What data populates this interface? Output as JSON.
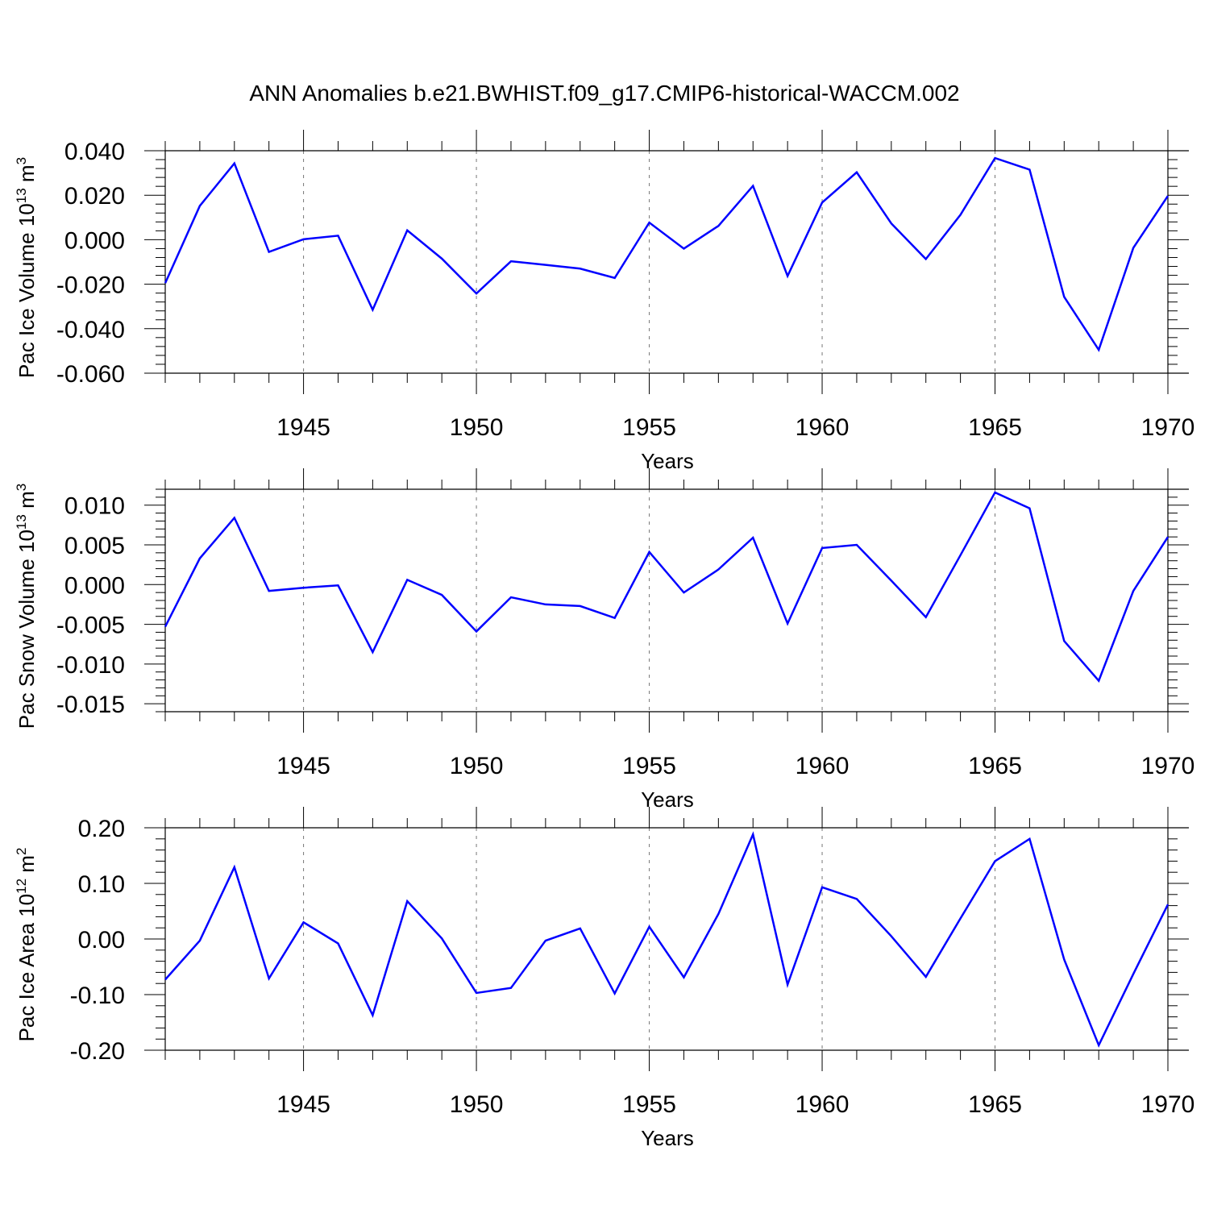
{
  "chart_data": {
    "title": "ANN Anomalies b.e21.BWHIST.f09_g17.CMIP6-historical-WACCM.002",
    "line_color": "#0000ff",
    "years": [
      1941,
      1942,
      1943,
      1944,
      1945,
      1946,
      1947,
      1948,
      1949,
      1950,
      1951,
      1952,
      1953,
      1954,
      1955,
      1956,
      1957,
      1958,
      1959,
      1960,
      1961,
      1962,
      1963,
      1964,
      1965,
      1966,
      1967,
      1968,
      1969,
      1970
    ],
    "panels": [
      {
        "type": "line",
        "ylabel": {
          "text": "Pac Ice Volume 10",
          "exp": "13",
          "unit": "m",
          "unit_exp": "3"
        },
        "xlabel": "Years",
        "xlim": [
          1941,
          1970
        ],
        "ylim": [
          -0.06,
          0.04
        ],
        "ytick_values": [
          0.04,
          0.02,
          0.0,
          -0.02,
          -0.04,
          -0.06
        ],
        "ytick_labels": [
          "0.040",
          "0.020",
          "0.000",
          "-0.020",
          "-0.040",
          "-0.060"
        ],
        "xtick_values": [
          1945,
          1950,
          1955,
          1960,
          1965,
          1970
        ],
        "xtick_labels": [
          "1945",
          "1950",
          "1955",
          "1960",
          "1965",
          "1970"
        ],
        "values": [
          -0.0195,
          0.0152,
          0.0343,
          -0.0055,
          0.0002,
          0.0018,
          -0.0315,
          0.0042,
          -0.0085,
          -0.0242,
          -0.0097,
          -0.0113,
          -0.013,
          -0.0172,
          0.0077,
          -0.004,
          0.0062,
          0.0242,
          -0.0163,
          0.0167,
          0.0303,
          0.0073,
          -0.0087,
          0.0112,
          0.0367,
          0.0315,
          -0.0257,
          -0.0495,
          -0.0037,
          0.0197
        ]
      },
      {
        "type": "line",
        "ylabel": {
          "text": "Pac Snow Volume 10",
          "exp": "13",
          "unit": "m",
          "unit_exp": "3"
        },
        "xlabel": "Years",
        "xlim": [
          1941,
          1970
        ],
        "ylim": [
          -0.016,
          0.012
        ],
        "ytick_values": [
          0.01,
          0.005,
          0.0,
          -0.005,
          -0.01,
          -0.015
        ],
        "ytick_labels": [
          "0.010",
          "0.005",
          "0.000",
          "-0.005",
          "-0.010",
          "-0.015"
        ],
        "xtick_values": [
          1945,
          1950,
          1955,
          1960,
          1965,
          1970
        ],
        "xtick_labels": [
          "1945",
          "1950",
          "1955",
          "1960",
          "1965",
          "1970"
        ],
        "values": [
          -0.0053,
          0.0033,
          0.0084,
          -0.0008,
          -0.0004,
          -0.0001,
          -0.0085,
          0.0006,
          -0.0013,
          -0.0059,
          -0.0016,
          -0.0025,
          -0.0027,
          -0.0042,
          0.0041,
          -0.001,
          0.0019,
          0.0059,
          -0.0049,
          0.0046,
          0.005,
          0.0005,
          -0.0041,
          0.0037,
          0.0116,
          0.0096,
          -0.0071,
          -0.0121,
          -0.0008,
          0.006
        ]
      },
      {
        "type": "line",
        "ylabel": {
          "text": "Pac Ice Area 10",
          "exp": "12",
          "unit": "m",
          "unit_exp": "2"
        },
        "xlabel": "Years",
        "xlim": [
          1941,
          1970
        ],
        "ylim": [
          -0.2,
          0.2
        ],
        "ytick_values": [
          0.2,
          0.1,
          0.0,
          -0.1,
          -0.2
        ],
        "ytick_labels": [
          "0.20",
          "0.10",
          "0.00",
          "-0.10",
          "-0.20"
        ],
        "xtick_values": [
          1945,
          1950,
          1955,
          1960,
          1965,
          1970
        ],
        "xtick_labels": [
          "1945",
          "1950",
          "1955",
          "1960",
          "1965",
          "1970"
        ],
        "values": [
          -0.073,
          -0.003,
          0.129,
          -0.071,
          0.03,
          -0.008,
          -0.137,
          0.068,
          0.001,
          -0.097,
          -0.088,
          -0.003,
          0.019,
          -0.098,
          0.022,
          -0.069,
          0.045,
          0.188,
          -0.082,
          0.093,
          0.072,
          0.005,
          -0.068,
          0.037,
          0.14,
          0.18,
          -0.037,
          -0.191,
          -0.063,
          0.062
        ]
      }
    ]
  }
}
